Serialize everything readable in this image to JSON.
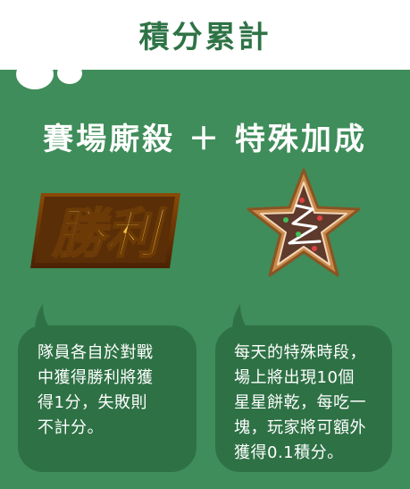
{
  "header": {
    "title": "積分累計"
  },
  "subtitle": "賽場廝殺 ＋ 特殊加成",
  "badges": {
    "win_text": "勝利",
    "win_icon": "victory-badge-icon",
    "star_icon": "star-cookie-icon"
  },
  "cards": {
    "left": {
      "text": "隊員各自於對戰\n中獲得勝利將獲\n得1分，失敗則\n不計分。"
    },
    "right": {
      "text": "每天的特殊時段，\n場上將出現10個\n星星餅乾，每吃一\n塊，玩家將可額外\n獲得0.1積分。"
    }
  },
  "colors": {
    "background": "#3f8d5a",
    "card": "#2e7145",
    "header_text": "#2e7346",
    "header_bg": "#ffffff"
  }
}
